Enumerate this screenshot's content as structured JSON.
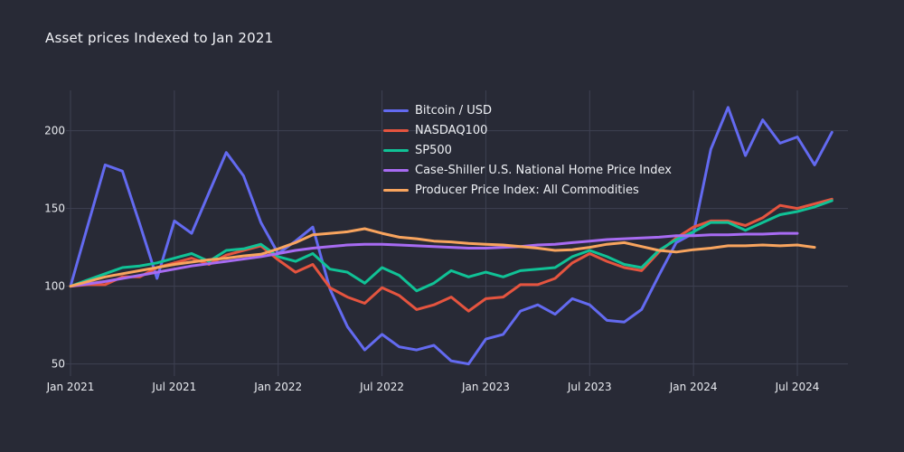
{
  "chart_data": {
    "type": "line",
    "title": "Asset prices Indexed to Jan 2021",
    "grid": true,
    "legend_position": "inside-top-center",
    "background_color": "#282a36",
    "gridline_color": "#3e4152",
    "text_color": "#e8eaef",
    "y_ticks": [
      50,
      100,
      150,
      200
    ],
    "ylim": [
      40,
      225
    ],
    "x_tick_month_indices": [
      0,
      6,
      12,
      18,
      24,
      30,
      36,
      42
    ],
    "x_tick_labels": [
      "Jan 2021",
      "Jul 2021",
      "Jan 2022",
      "Jul 2022",
      "Jan 2023",
      "Jul 2023",
      "Jan 2024",
      "Jul 2024"
    ],
    "x_months": [
      "Jan 2021",
      "Feb 2021",
      "Mar 2021",
      "Apr 2021",
      "May 2021",
      "Jun 2021",
      "Jul 2021",
      "Aug 2021",
      "Sep 2021",
      "Oct 2021",
      "Nov 2021",
      "Dec 2021",
      "Jan 2022",
      "Feb 2022",
      "Mar 2022",
      "Apr 2022",
      "May 2022",
      "Jun 2022",
      "Jul 2022",
      "Aug 2022",
      "Sep 2022",
      "Oct 2022",
      "Nov 2022",
      "Dec 2022",
      "Jan 2023",
      "Feb 2023",
      "Mar 2023",
      "Apr 2023",
      "May 2023",
      "Jun 2023",
      "Jul 2023",
      "Aug 2023",
      "Sep 2023",
      "Oct 2023",
      "Nov 2023",
      "Dec 2023",
      "Jan 2024",
      "Feb 2024",
      "Mar 2024",
      "Apr 2024",
      "May 2024",
      "Jun 2024",
      "Jul 2024",
      "Aug 2024",
      "Sep 2024"
    ],
    "series": [
      {
        "name": "Bitcoin / USD",
        "color": "#636af0",
        "values": [
          100,
          139,
          178,
          174,
          140,
          105,
          142,
          134,
          160,
          186,
          171,
          141,
          121,
          129,
          138,
          98,
          74,
          59,
          69,
          61,
          59,
          62,
          52,
          50,
          66,
          69,
          84,
          88,
          82,
          92,
          88,
          78,
          77,
          85,
          107,
          128,
          134,
          188,
          215,
          184,
          207,
          192,
          196,
          178,
          199
        ]
      },
      {
        "name": "NASDAQ100",
        "color": "#e5543f",
        "values": [
          100,
          101,
          101,
          106,
          106,
          112,
          115,
          118,
          114,
          120,
          123,
          126,
          117,
          109,
          114,
          99,
          93,
          89,
          99,
          94,
          85,
          88,
          93,
          84,
          92,
          93,
          101,
          101,
          105,
          115,
          121,
          116,
          112,
          110,
          122,
          131,
          138,
          142,
          142,
          139,
          144,
          152,
          150,
          153,
          156
        ]
      },
      {
        "name": "SP500",
        "color": "#10c296",
        "values": [
          100,
          104,
          108,
          112,
          113,
          115,
          118,
          121,
          116,
          123,
          124,
          127,
          119,
          116,
          121,
          111,
          109,
          102,
          112,
          107,
          97,
          102,
          110,
          106,
          109,
          106,
          110,
          111,
          112,
          119,
          123,
          119,
          114,
          112,
          123,
          130,
          135,
          141,
          141,
          136,
          141,
          146,
          148,
          151,
          155
        ]
      },
      {
        "name": "Case-Shiller U.S. National Home Price Index",
        "color": "#a76bf2",
        "values": [
          100,
          101.5,
          103,
          105,
          107,
          109,
          111,
          113,
          114.5,
          116,
          117.5,
          119,
          121,
          123,
          124.5,
          125.5,
          126.5,
          127,
          127,
          126.5,
          126,
          125.5,
          125,
          124.5,
          124.5,
          125,
          125.5,
          126.5,
          127,
          128,
          129,
          130,
          130.5,
          131,
          131.5,
          132.5,
          132.5,
          133,
          133,
          133.5,
          133.5,
          134,
          134
        ]
      },
      {
        "name": "Producer Price Index: All Commodities",
        "color": "#f8a45e",
        "values": [
          100,
          103,
          106,
          108,
          110,
          112,
          114,
          115.5,
          117,
          118,
          119.5,
          120.5,
          124,
          128,
          133,
          134,
          135,
          137,
          134,
          131.5,
          130.5,
          129,
          128.5,
          127.5,
          127,
          126.5,
          125.5,
          124.5,
          123,
          123.5,
          125,
          127,
          128,
          125.5,
          123,
          122,
          123.5,
          124.5,
          126,
          126,
          126.5,
          126,
          126.5,
          125
        ]
      }
    ]
  }
}
